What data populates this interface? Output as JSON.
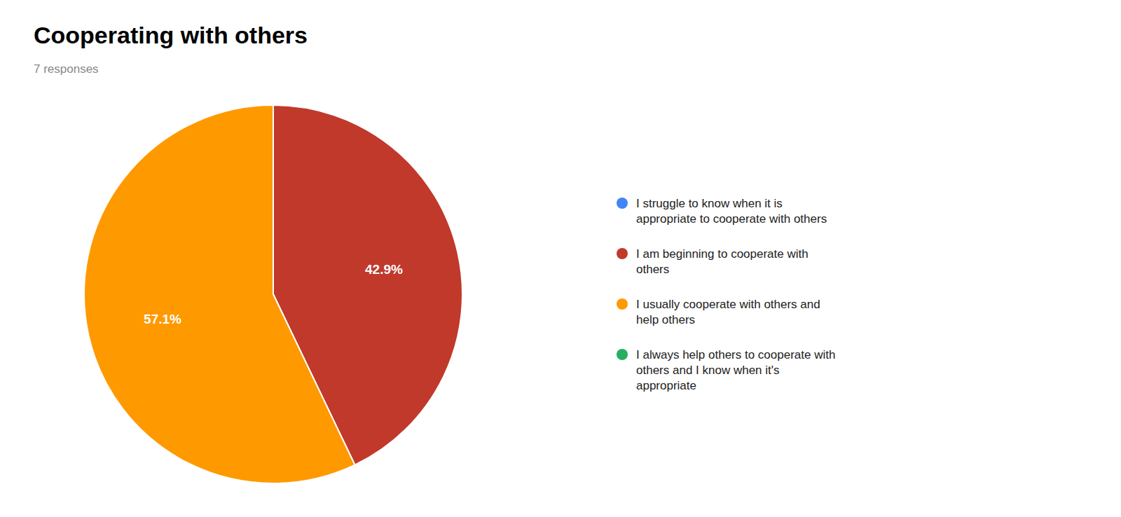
{
  "chart_data": {
    "type": "pie",
    "title": "Cooperating with others",
    "subtitle": "7 responses",
    "categories": [
      "I struggle to know when it is\nappropriate to cooperate with others",
      "I am beginning to cooperate with\nothers",
      "I usually cooperate with others and\nhelp others",
      "I always help others to cooperate with\nothers and I know when it's\nappropriate"
    ],
    "values": [
      0.0,
      42.9,
      57.1,
      0.0
    ],
    "value_labels": [
      null,
      "42.9%",
      "57.1%",
      null
    ],
    "colors": [
      "#4285F4",
      "#C0392B",
      "#FF9900",
      "#27AE60"
    ],
    "data_labels": true,
    "legend": "right"
  }
}
